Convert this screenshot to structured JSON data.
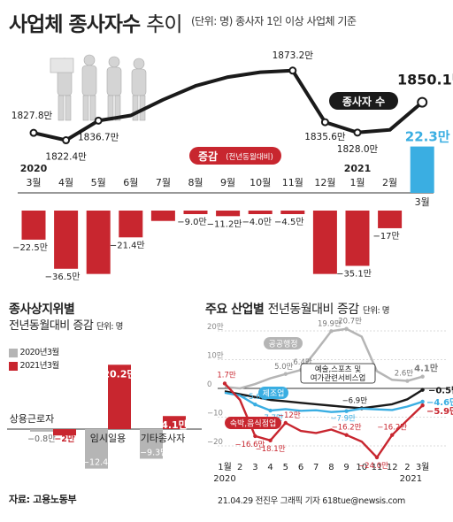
{
  "header": {
    "title_bold": "사업체 종사자수",
    "title_light": "추이",
    "subtitle": "(단위: 명) 종사자 1인 이상 사업체 기준"
  },
  "colors": {
    "red": "#c8262f",
    "blue": "#3aaee2",
    "black": "#1a1a1a",
    "gray": "#b5b5b5",
    "darkgray": "#8c8c8c"
  },
  "chart_data": [
    {
      "type": "line",
      "title": "",
      "series_label": "종사자 수",
      "x": [
        "2020 3월",
        "4월",
        "5월",
        "6월",
        "7월",
        "8월",
        "9월",
        "10월",
        "11월",
        "12월",
        "2021 1월",
        "2월",
        "3월"
      ],
      "values": [
        1827.8,
        1822.4,
        1836.7,
        null,
        null,
        null,
        null,
        null,
        1873.2,
        1835.6,
        1828.0,
        null,
        1850.1
      ],
      "point_labels": [
        "1827.8만",
        "1822.4만",
        "1836.7만",
        "",
        "",
        "",
        "",
        "",
        "1873.2만",
        "1835.6만",
        "1828.0만",
        "",
        "1850.1만"
      ],
      "unit": "만"
    },
    {
      "type": "bar",
      "title": "증감",
      "title_note": "(전년동월대비)",
      "year_labels": [
        {
          "text": "2020",
          "index": 0
        },
        {
          "text": "2021",
          "index": 10
        }
      ],
      "categories": [
        "3월",
        "4월",
        "5월",
        "6월",
        "7월",
        "8월",
        "9월",
        "10월",
        "11월",
        "12월",
        "1월",
        "2월",
        "3월"
      ],
      "values": [
        -22.5,
        -36.5,
        null,
        -21.4,
        null,
        -9.0,
        -11.2,
        -4.0,
        -4.5,
        null,
        -35.1,
        -17,
        22.3
      ],
      "value_labels": [
        "−22.5만",
        "−36.5만",
        "",
        "−21.4만",
        "",
        "−9.0만",
        "−11.2만",
        "−4.0만",
        "−4.5만",
        "",
        "−35.1만",
        "−17만",
        "22.3만"
      ],
      "highlight_index": 12
    },
    {
      "type": "bar",
      "title": "종사상지위별",
      "subtitle": "전년동월대비 증감",
      "unit_label": "단위: 명",
      "categories": [
        "상용근로자",
        "임시일용",
        "기타종사자"
      ],
      "series": [
        {
          "name": "2020년3월",
          "values": [
            -0.8,
            -12.4,
            -9.3
          ],
          "labels": [
            "−0.8만",
            "−12.4만",
            "−9.3만"
          ]
        },
        {
          "name": "2021년3월",
          "values": [
            -2,
            20.2,
            4.1
          ],
          "labels": [
            "−2만",
            "20.2만",
            "4.1만"
          ]
        }
      ]
    },
    {
      "type": "line",
      "title": "주요 산업별",
      "subtitle": "전년동월대비 증감",
      "unit_label": "단위: 명",
      "x": [
        "1월",
        "2",
        "3",
        "4",
        "5",
        "6",
        "7",
        "8",
        "9",
        "10",
        "11",
        "12",
        "2",
        "3월"
      ],
      "x_year_labels": [
        "2020",
        "2021"
      ],
      "yticks": [
        20,
        10,
        0,
        -10,
        -20
      ],
      "ytick_labels": [
        "20만",
        "10만",
        "0",
        "−10",
        "−20"
      ],
      "ylim": [
        -26,
        22
      ],
      "series": [
        {
          "name": "공공행정",
          "values": [
            null,
            null,
            null,
            null,
            5.0,
            6.4,
            null,
            19.9,
            20.7,
            null,
            null,
            null,
            2.6,
            4.1
          ],
          "labels": [
            "",
            "",
            "",
            "",
            "5.0만",
            "6.4만",
            "",
            "19.9만",
            "20.7만",
            "",
            "",
            "",
            "2.6만",
            "4.1만"
          ]
        },
        {
          "name": "예술,스포츠 및 여가관련서비스업",
          "values": [
            null,
            null,
            null,
            null,
            null,
            null,
            null,
            null,
            null,
            -6.9,
            null,
            null,
            null,
            -0.5
          ],
          "labels": [
            "",
            "",
            "",
            "",
            "",
            "",
            "",
            "",
            "",
            "−6.9만",
            "",
            "",
            "",
            "−0.5만"
          ]
        },
        {
          "name": "제조업",
          "values": [
            null,
            null,
            -5.6,
            -7.7,
            null,
            null,
            null,
            null,
            -7.9,
            null,
            null,
            null,
            null,
            -4.6
          ],
          "labels": [
            "",
            "",
            "−5.6만",
            "−7.7만",
            "",
            "",
            "",
            "",
            "−7.9만",
            "",
            "",
            "",
            "",
            "−4.6만"
          ]
        },
        {
          "name": "숙박,음식점업",
          "values": [
            1.7,
            null,
            -16.6,
            -18.1,
            -12,
            null,
            null,
            null,
            -16.2,
            null,
            -24.0,
            -16.2,
            null,
            -5.9
          ],
          "labels": [
            "1.7만",
            "",
            "−16.6만",
            "−18.1만",
            "−12만",
            "",
            "",
            "",
            "−16.2만",
            "",
            "−24.0만",
            "−16.2만",
            "",
            "−5.9만"
          ]
        }
      ]
    }
  ],
  "footer": {
    "source": "자료: 고용노동부",
    "credit": "21.04.29 전진우 그래픽 기자 618tue@newsis.com"
  }
}
